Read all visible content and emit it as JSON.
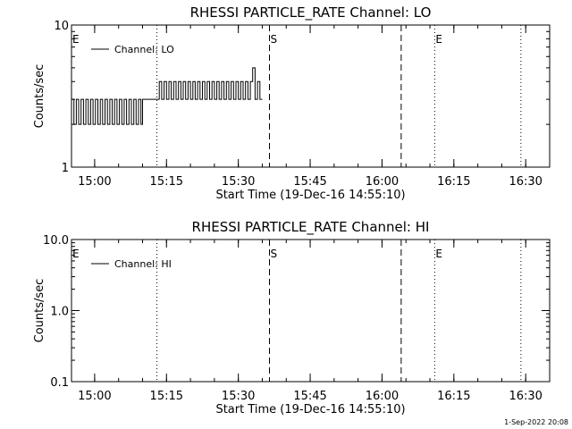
{
  "footer": "1-Sep-2022 20:08",
  "chart_data": [
    {
      "type": "line",
      "title": "RHESSI PARTICLE_RATE Channel: LO",
      "xlabel": "Start Time (19-Dec-16 14:55:10)",
      "ylabel": "Counts/sec",
      "yscale": "log",
      "ylim": [
        1,
        10
      ],
      "xlim": [
        "14:55:10",
        "16:35:00"
      ],
      "y_ticks": [
        {
          "value": 1,
          "label": "1"
        },
        {
          "value": 10,
          "label": "10"
        }
      ],
      "x_ticks": [
        {
          "value": "15:00",
          "label": "15:00"
        },
        {
          "value": "15:15",
          "label": "15:15"
        },
        {
          "value": "15:30",
          "label": "15:30"
        },
        {
          "value": "15:45",
          "label": "15:45"
        },
        {
          "value": "16:00",
          "label": "16:00"
        },
        {
          "value": "16:15",
          "label": "16:15"
        },
        {
          "value": "16:30",
          "label": "16:30"
        }
      ],
      "legend": {
        "position": "top-left",
        "entries": [
          "Channel: LO"
        ]
      },
      "markers": [
        {
          "time": "14:55:10",
          "style": "none",
          "label": "E"
        },
        {
          "time": "15:13:00",
          "style": "dotted",
          "label": ""
        },
        {
          "time": "15:36:30",
          "style": "dashed",
          "label": "S"
        },
        {
          "time": "16:04:00",
          "style": "dashed",
          "label": ""
        },
        {
          "time": "16:11:00",
          "style": "dotted",
          "label": "E"
        },
        {
          "time": "16:29:00",
          "style": "dotted",
          "label": ""
        }
      ],
      "series": [
        {
          "name": "Channel: LO",
          "x": [
            "14:55:10",
            "14:55:40",
            "14:56:10",
            "14:56:40",
            "14:57:10",
            "14:57:40",
            "14:58:10",
            "14:58:40",
            "14:59:10",
            "14:59:40",
            "15:00:10",
            "15:00:40",
            "15:01:10",
            "15:01:40",
            "15:02:10",
            "15:02:40",
            "15:03:10",
            "15:03:40",
            "15:04:10",
            "15:04:40",
            "15:05:10",
            "15:05:40",
            "15:06:10",
            "15:06:40",
            "15:07:10",
            "15:07:40",
            "15:08:10",
            "15:08:40",
            "15:09:10",
            "15:09:40",
            "15:10:00",
            "15:11:00",
            "15:12:00",
            "15:13:00",
            "15:13:30",
            "15:14:00",
            "15:14:30",
            "15:15:00",
            "15:15:30",
            "15:16:00",
            "15:16:30",
            "15:17:00",
            "15:17:30",
            "15:18:00",
            "15:18:30",
            "15:19:00",
            "15:19:30",
            "15:20:00",
            "15:20:30",
            "15:21:00",
            "15:21:30",
            "15:22:00",
            "15:22:30",
            "15:23:00",
            "15:23:30",
            "15:24:00",
            "15:24:30",
            "15:25:00",
            "15:25:30",
            "15:26:00",
            "15:26:30",
            "15:27:00",
            "15:27:30",
            "15:28:00",
            "15:28:30",
            "15:29:00",
            "15:29:30",
            "15:30:00",
            "15:30:30",
            "15:31:00",
            "15:31:30",
            "15:32:00",
            "15:32:30",
            "15:33:00",
            "15:33:30",
            "15:34:00",
            "15:34:30"
          ],
          "y": [
            3,
            2,
            3,
            2,
            3,
            2,
            3,
            2,
            3,
            2,
            3,
            2,
            3,
            2,
            3,
            2,
            3,
            2,
            3,
            2,
            3,
            2,
            3,
            2,
            3,
            2,
            3,
            2,
            3,
            2,
            3,
            3,
            3,
            3,
            4,
            3,
            4,
            3,
            4,
            3,
            4,
            3,
            4,
            3,
            4,
            3,
            4,
            3,
            4,
            3,
            4,
            3,
            4,
            3,
            4,
            3,
            4,
            3,
            4,
            3,
            4,
            3,
            4,
            3,
            4,
            3,
            4,
            3,
            4,
            3,
            4,
            3,
            4,
            5,
            3,
            4,
            3
          ]
        }
      ]
    },
    {
      "type": "line",
      "title": "RHESSI PARTICLE_RATE Channel: HI",
      "xlabel": "Start Time (19-Dec-16 14:55:10)",
      "ylabel": "Counts/sec",
      "yscale": "log",
      "ylim": [
        0.1,
        10
      ],
      "xlim": [
        "14:55:10",
        "16:35:00"
      ],
      "y_ticks": [
        {
          "value": 0.1,
          "label": "0.1"
        },
        {
          "value": 1,
          "label": "1.0"
        },
        {
          "value": 10,
          "label": "10.0"
        }
      ],
      "x_ticks": [
        {
          "value": "15:00",
          "label": "15:00"
        },
        {
          "value": "15:15",
          "label": "15:15"
        },
        {
          "value": "15:30",
          "label": "15:30"
        },
        {
          "value": "15:45",
          "label": "15:45"
        },
        {
          "value": "16:00",
          "label": "16:00"
        },
        {
          "value": "16:15",
          "label": "16:15"
        },
        {
          "value": "16:30",
          "label": "16:30"
        }
      ],
      "legend": {
        "position": "top-left",
        "entries": [
          "Channel: HI"
        ]
      },
      "markers": [
        {
          "time": "14:55:10",
          "style": "none",
          "label": "E"
        },
        {
          "time": "15:13:00",
          "style": "dotted",
          "label": ""
        },
        {
          "time": "15:36:30",
          "style": "dashed",
          "label": "S"
        },
        {
          "time": "16:04:00",
          "style": "dashed",
          "label": ""
        },
        {
          "time": "16:11:00",
          "style": "dotted",
          "label": "E"
        },
        {
          "time": "16:29:00",
          "style": "dotted",
          "label": ""
        }
      ],
      "series": [
        {
          "name": "Channel: HI",
          "x": [],
          "y": []
        }
      ]
    }
  ]
}
